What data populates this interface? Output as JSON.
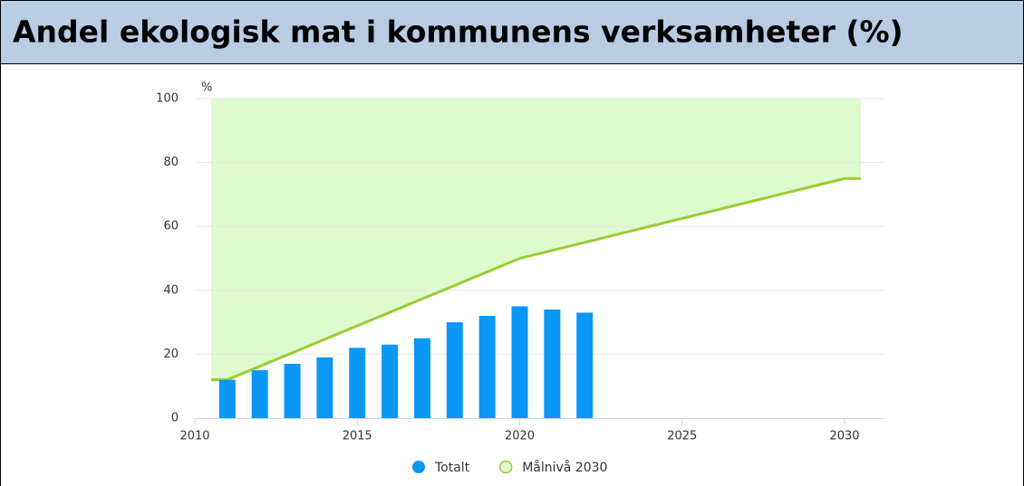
{
  "chart_data": {
    "type": "bar",
    "title": "Andel ekologisk mat i kommunens verksamheter (%)",
    "ylabel": "%",
    "xlim": [
      2010,
      2031.2
    ],
    "xticks": [
      2010,
      2015,
      2020,
      2025,
      2030
    ],
    "ylim": [
      0,
      100
    ],
    "yticks": [
      0,
      20,
      40,
      60,
      80,
      100
    ],
    "grid": true,
    "legend": "bottom",
    "series": [
      {
        "name": "Totalt",
        "type": "bar",
        "color": "#0a97f5",
        "x": [
          2011,
          2012,
          2013,
          2014,
          2015,
          2016,
          2017,
          2018,
          2019,
          2020,
          2021,
          2022
        ],
        "values": [
          12,
          15,
          17,
          19,
          22,
          23,
          25,
          30,
          32,
          35,
          34,
          33
        ]
      },
      {
        "name": "Målnivå 2030",
        "type": "area",
        "color": "#99cc33",
        "fill": "#ddfbcc",
        "x": [
          2010.5,
          2011,
          2020,
          2030,
          2030.5
        ],
        "values": [
          12,
          12,
          50,
          75,
          75
        ]
      }
    ]
  }
}
